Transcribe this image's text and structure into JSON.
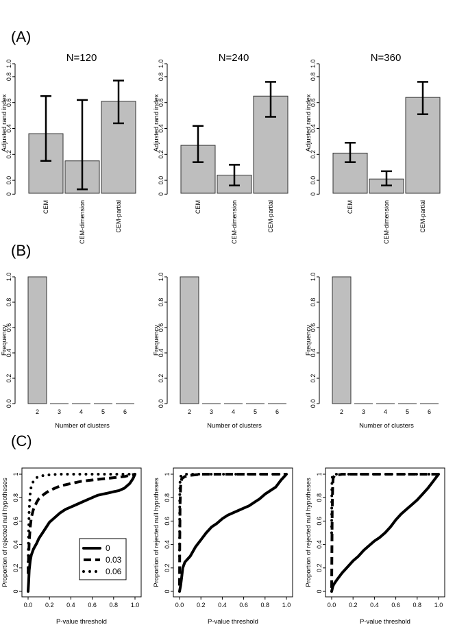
{
  "panel_labels": [
    "(A)",
    "(B)",
    "(C)"
  ],
  "chart_data": [
    {
      "type": "bar",
      "panel": "A",
      "title": "N=120",
      "ylabel": "Adjusted rand index",
      "categories": [
        "CEM",
        "CEM-dimension",
        "CEM-partial"
      ],
      "values": [
        0.46,
        0.25,
        0.71
      ],
      "error_low": [
        0.25,
        0.03,
        0.54
      ],
      "error_high": [
        0.75,
        0.72,
        0.87
      ],
      "ylim": [
        0,
        1
      ],
      "yticks": [
        "0",
        "0.0",
        "0.2",
        "0.4",
        "0.6",
        "0.8",
        "1.0"
      ]
    },
    {
      "type": "bar",
      "panel": "A",
      "title": "N=240",
      "ylabel": "Adjusted rand index",
      "categories": [
        "CEM",
        "CEM-dimension",
        "CEM-partial"
      ],
      "values": [
        0.37,
        0.14,
        0.75
      ],
      "error_low": [
        0.24,
        0.06,
        0.59
      ],
      "error_high": [
        0.52,
        0.22,
        0.86
      ],
      "ylim": [
        0,
        1
      ],
      "yticks": [
        "0",
        "0.0",
        "0.2",
        "0.4",
        "0.6",
        "0.8",
        "1.0"
      ]
    },
    {
      "type": "bar",
      "panel": "A",
      "title": "N=360",
      "ylabel": "Adjusted rand index",
      "categories": [
        "CEM",
        "CEM-dimension",
        "CEM-partial"
      ],
      "values": [
        0.31,
        0.11,
        0.74
      ],
      "error_low": [
        0.24,
        0.06,
        0.61
      ],
      "error_high": [
        0.39,
        0.17,
        0.86
      ],
      "ylim": [
        0,
        1
      ],
      "yticks": [
        "0",
        "0.0",
        "0.2",
        "0.4",
        "0.6",
        "0.8",
        "1.0"
      ]
    },
    {
      "type": "bar",
      "panel": "B",
      "ylabel": "Frequency",
      "xlabel": "Number of clusters",
      "categories": [
        "2",
        "3",
        "4",
        "5",
        "6"
      ],
      "values": [
        1.0,
        0,
        0,
        0,
        0
      ],
      "ylim": [
        0,
        1
      ],
      "yticks": [
        "0.0",
        "0.2",
        "0.4",
        "0.6",
        "0.8",
        "1.0"
      ]
    },
    {
      "type": "bar",
      "panel": "B",
      "ylabel": "Frequency",
      "xlabel": "Number of clusters",
      "categories": [
        "2",
        "3",
        "4",
        "5",
        "6"
      ],
      "values": [
        1.0,
        0,
        0,
        0,
        0
      ],
      "ylim": [
        0,
        1
      ],
      "yticks": [
        "0.0",
        "0.2",
        "0.4",
        "0.6",
        "0.8",
        "1.0"
      ]
    },
    {
      "type": "bar",
      "panel": "B",
      "ylabel": "Frequency",
      "xlabel": "Number of clusters",
      "categories": [
        "2",
        "3",
        "4",
        "5",
        "6"
      ],
      "values": [
        1.0,
        0,
        0,
        0,
        0
      ],
      "ylim": [
        0,
        1
      ],
      "yticks": [
        "0.0",
        "0.2",
        "0.4",
        "0.6",
        "0.8",
        "1.0"
      ]
    },
    {
      "type": "line",
      "panel": "C",
      "xlabel": "P-value threshold",
      "ylabel": "Proportion of rejected null hypotheses",
      "xlim": [
        0,
        1
      ],
      "ylim": [
        0,
        1
      ],
      "xticks": [
        "0.0",
        "0.2",
        "0.4",
        "0.6",
        "0.8",
        "1.0"
      ],
      "yticks": [
        "0",
        "0.2",
        "0.4",
        "0.6",
        "0.8",
        "1"
      ],
      "legend": {
        "position": "bottom-right",
        "entries": [
          "0",
          "0.03",
          "0.06"
        ]
      },
      "series": [
        {
          "name": "0",
          "style": "solid",
          "x": [
            0,
            0.005,
            0.01,
            0.02,
            0.03,
            0.05,
            0.08,
            0.1,
            0.15,
            0.2,
            0.25,
            0.3,
            0.35,
            0.4,
            0.45,
            0.5,
            0.55,
            0.6,
            0.65,
            0.7,
            0.75,
            0.8,
            0.85,
            0.9,
            0.95,
            0.98,
            1.0
          ],
          "y": [
            0,
            0.08,
            0.18,
            0.26,
            0.31,
            0.36,
            0.41,
            0.45,
            0.52,
            0.59,
            0.63,
            0.67,
            0.7,
            0.72,
            0.74,
            0.76,
            0.78,
            0.8,
            0.82,
            0.83,
            0.84,
            0.85,
            0.86,
            0.88,
            0.92,
            0.96,
            1.0
          ]
        },
        {
          "name": "0.03",
          "style": "dashed",
          "x": [
            0,
            0.005,
            0.01,
            0.02,
            0.03,
            0.05,
            0.08,
            0.1,
            0.15,
            0.2,
            0.25,
            0.3,
            0.35,
            0.4,
            0.5,
            0.6,
            0.7,
            0.8,
            0.9,
            1.0
          ],
          "y": [
            0.15,
            0.3,
            0.42,
            0.55,
            0.63,
            0.7,
            0.76,
            0.79,
            0.83,
            0.86,
            0.88,
            0.9,
            0.91,
            0.92,
            0.94,
            0.95,
            0.96,
            0.97,
            0.98,
            1.0
          ]
        },
        {
          "name": "0.06",
          "style": "dotted",
          "x": [
            0,
            0.005,
            0.01,
            0.02,
            0.03,
            0.05,
            0.08,
            0.1,
            0.15,
            0.2,
            0.3,
            0.4,
            0.6,
            0.8,
            1.0
          ],
          "y": [
            0.2,
            0.5,
            0.7,
            0.84,
            0.9,
            0.94,
            0.97,
            0.98,
            0.99,
            0.995,
            1.0,
            1.0,
            1.0,
            1.0,
            1.0
          ]
        }
      ]
    },
    {
      "type": "line",
      "panel": "C",
      "xlabel": "P-value threshold",
      "ylabel": "Proportion of rejected null hypotheses",
      "xlim": [
        0,
        1
      ],
      "ylim": [
        0,
        1
      ],
      "xticks": [
        "0.0",
        "0.2",
        "0.4",
        "0.6",
        "0.8",
        "1.0"
      ],
      "yticks": [
        "0",
        "0.2",
        "0.4",
        "0.6",
        "0.8",
        "1"
      ],
      "series": [
        {
          "name": "0",
          "style": "solid",
          "x": [
            0,
            0.01,
            0.02,
            0.03,
            0.05,
            0.08,
            0.1,
            0.15,
            0.2,
            0.25,
            0.3,
            0.35,
            0.4,
            0.45,
            0.5,
            0.55,
            0.6,
            0.65,
            0.7,
            0.75,
            0.8,
            0.85,
            0.9,
            0.95,
            1.0
          ],
          "y": [
            0,
            0.05,
            0.12,
            0.2,
            0.25,
            0.28,
            0.3,
            0.38,
            0.44,
            0.5,
            0.55,
            0.58,
            0.62,
            0.65,
            0.67,
            0.69,
            0.71,
            0.73,
            0.76,
            0.79,
            0.83,
            0.86,
            0.89,
            0.95,
            1.0
          ]
        },
        {
          "name": "0.03",
          "style": "dashed",
          "x": [
            0,
            0.002,
            0.005,
            0.01,
            0.02,
            0.05,
            0.1,
            0.2,
            0.4,
            0.6,
            0.8,
            1.0
          ],
          "y": [
            0.05,
            0.4,
            0.75,
            0.9,
            0.96,
            0.98,
            0.99,
            1.0,
            1.0,
            1.0,
            1.0,
            1.0
          ]
        },
        {
          "name": "0.06",
          "style": "dotted",
          "x": [
            0,
            0.002,
            0.005,
            0.01,
            0.02,
            0.05,
            0.1,
            0.2,
            0.4,
            0.6,
            0.8,
            1.0
          ],
          "y": [
            0.3,
            0.8,
            0.95,
            0.98,
            0.99,
            1.0,
            1.0,
            1.0,
            1.0,
            1.0,
            1.0,
            1.0
          ]
        }
      ]
    },
    {
      "type": "line",
      "panel": "C",
      "xlabel": "P-value threshold",
      "ylabel": "Proportion of rejected null hypotheses",
      "xlim": [
        0,
        1
      ],
      "ylim": [
        0,
        1
      ],
      "xticks": [
        "0.0",
        "0.2",
        "0.4",
        "0.6",
        "0.8",
        "1.0"
      ],
      "yticks": [
        "0",
        "0.2",
        "0.4",
        "0.6",
        "0.8",
        "1"
      ],
      "series": [
        {
          "name": "0",
          "style": "solid",
          "x": [
            0,
            0.01,
            0.02,
            0.05,
            0.1,
            0.15,
            0.2,
            0.25,
            0.3,
            0.35,
            0.4,
            0.45,
            0.5,
            0.55,
            0.6,
            0.65,
            0.7,
            0.75,
            0.8,
            0.85,
            0.9,
            0.95,
            1.0
          ],
          "y": [
            0,
            0.04,
            0.06,
            0.1,
            0.16,
            0.21,
            0.26,
            0.3,
            0.35,
            0.39,
            0.43,
            0.46,
            0.5,
            0.55,
            0.61,
            0.66,
            0.7,
            0.74,
            0.78,
            0.83,
            0.88,
            0.94,
            1.0
          ]
        },
        {
          "name": "0.03",
          "style": "dashed",
          "x": [
            0,
            0.002,
            0.005,
            0.01,
            0.015,
            0.03,
            0.1,
            0.2,
            0.4,
            0.6,
            0.8,
            1.0
          ],
          "y": [
            0.03,
            0.3,
            0.7,
            0.92,
            0.97,
            0.99,
            1.0,
            1.0,
            1.0,
            1.0,
            1.0,
            1.0
          ]
        },
        {
          "name": "0.06",
          "style": "dotted",
          "x": [
            0,
            0.002,
            0.005,
            0.01,
            0.02,
            0.05,
            0.1,
            0.2,
            0.4,
            0.6,
            0.8,
            1.0
          ],
          "y": [
            0.5,
            0.9,
            0.97,
            0.99,
            1.0,
            1.0,
            1.0,
            1.0,
            1.0,
            1.0,
            1.0,
            1.0
          ]
        }
      ]
    }
  ]
}
